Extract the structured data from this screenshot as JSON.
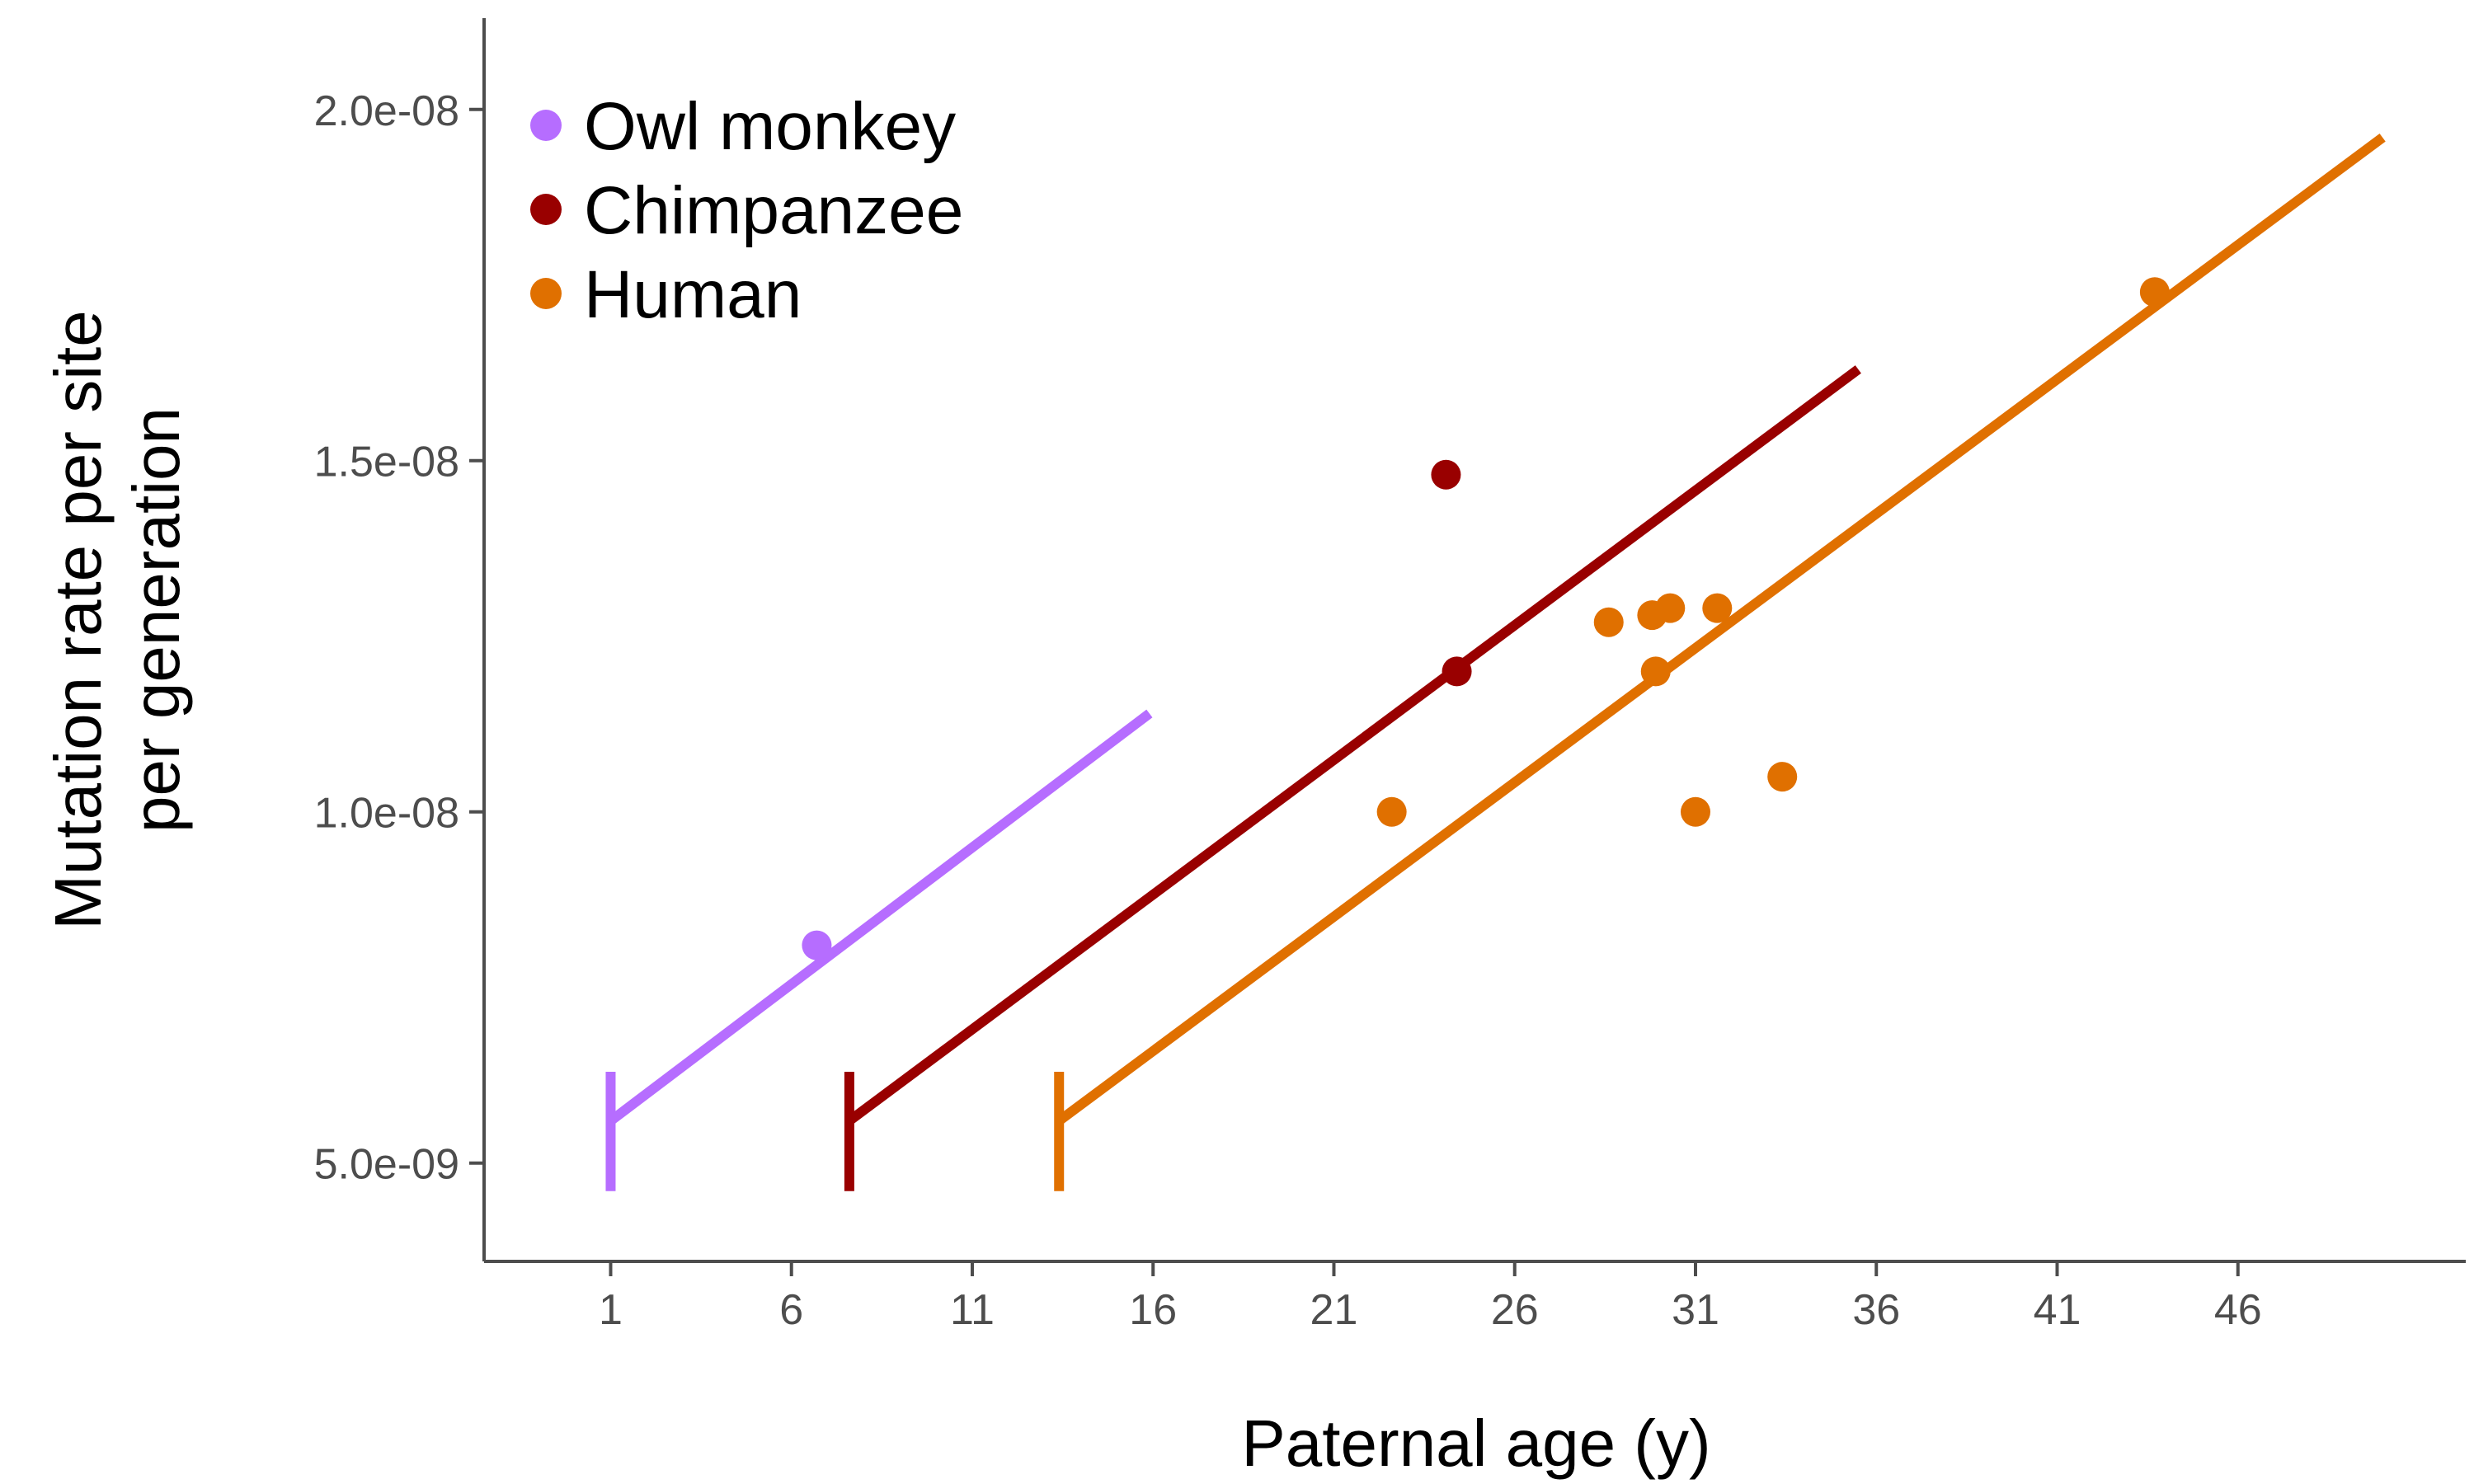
{
  "chart_data": {
    "type": "scatter",
    "xlabel": "Paternal age (y)",
    "ylabel_lines": [
      "Mutation rate per site",
      "per generation"
    ],
    "x_ticks": [
      1,
      6,
      11,
      16,
      21,
      26,
      31,
      36,
      41,
      46
    ],
    "y_ticks": [
      5e-09,
      1e-08,
      1.5e-08,
      2e-08
    ],
    "y_tick_labels": [
      "5.0e-09",
      "1.0e-08",
      "1.5e-08",
      "2.0e-08"
    ],
    "xlim": [
      -2.5,
      52.3
    ],
    "ylim": [
      3.6e-09,
      2.13e-08
    ],
    "grid": false,
    "legend_position": "top-left",
    "series": [
      {
        "name": "Owl monkey",
        "color": "#B66DFF",
        "points": [
          {
            "x": 6.7,
            "y": 8.1e-09
          }
        ],
        "line": {
          "x": [
            1.0,
            15.9
          ],
          "y": [
            5.6e-09,
            1.14e-08
          ]
        },
        "puberty_age": 1.0
      },
      {
        "name": "Chimpanzee",
        "color": "#990000",
        "points": [
          {
            "x": 24.1,
            "y": 1.48e-08
          },
          {
            "x": 24.4,
            "y": 1.2e-08
          }
        ],
        "line": {
          "x": [
            7.6,
            35.5
          ],
          "y": [
            5.6e-09,
            1.63e-08
          ]
        },
        "puberty_age": 7.6
      },
      {
        "name": "Human",
        "color": "#E07000",
        "points": [
          {
            "x": 22.6,
            "y": 1e-08
          },
          {
            "x": 28.6,
            "y": 1.27e-08
          },
          {
            "x": 29.8,
            "y": 1.28e-08
          },
          {
            "x": 30.3,
            "y": 1.29e-08
          },
          {
            "x": 29.9,
            "y": 1.2e-08
          },
          {
            "x": 31.6,
            "y": 1.29e-08
          },
          {
            "x": 31.0,
            "y": 1e-08
          },
          {
            "x": 33.4,
            "y": 1.05e-08
          },
          {
            "x": 43.7,
            "y": 1.74e-08
          }
        ],
        "line": {
          "x": [
            13.4,
            50.0
          ],
          "y": [
            5.6e-09,
            1.96e-08
          ]
        },
        "puberty_age": 13.4
      }
    ]
  }
}
